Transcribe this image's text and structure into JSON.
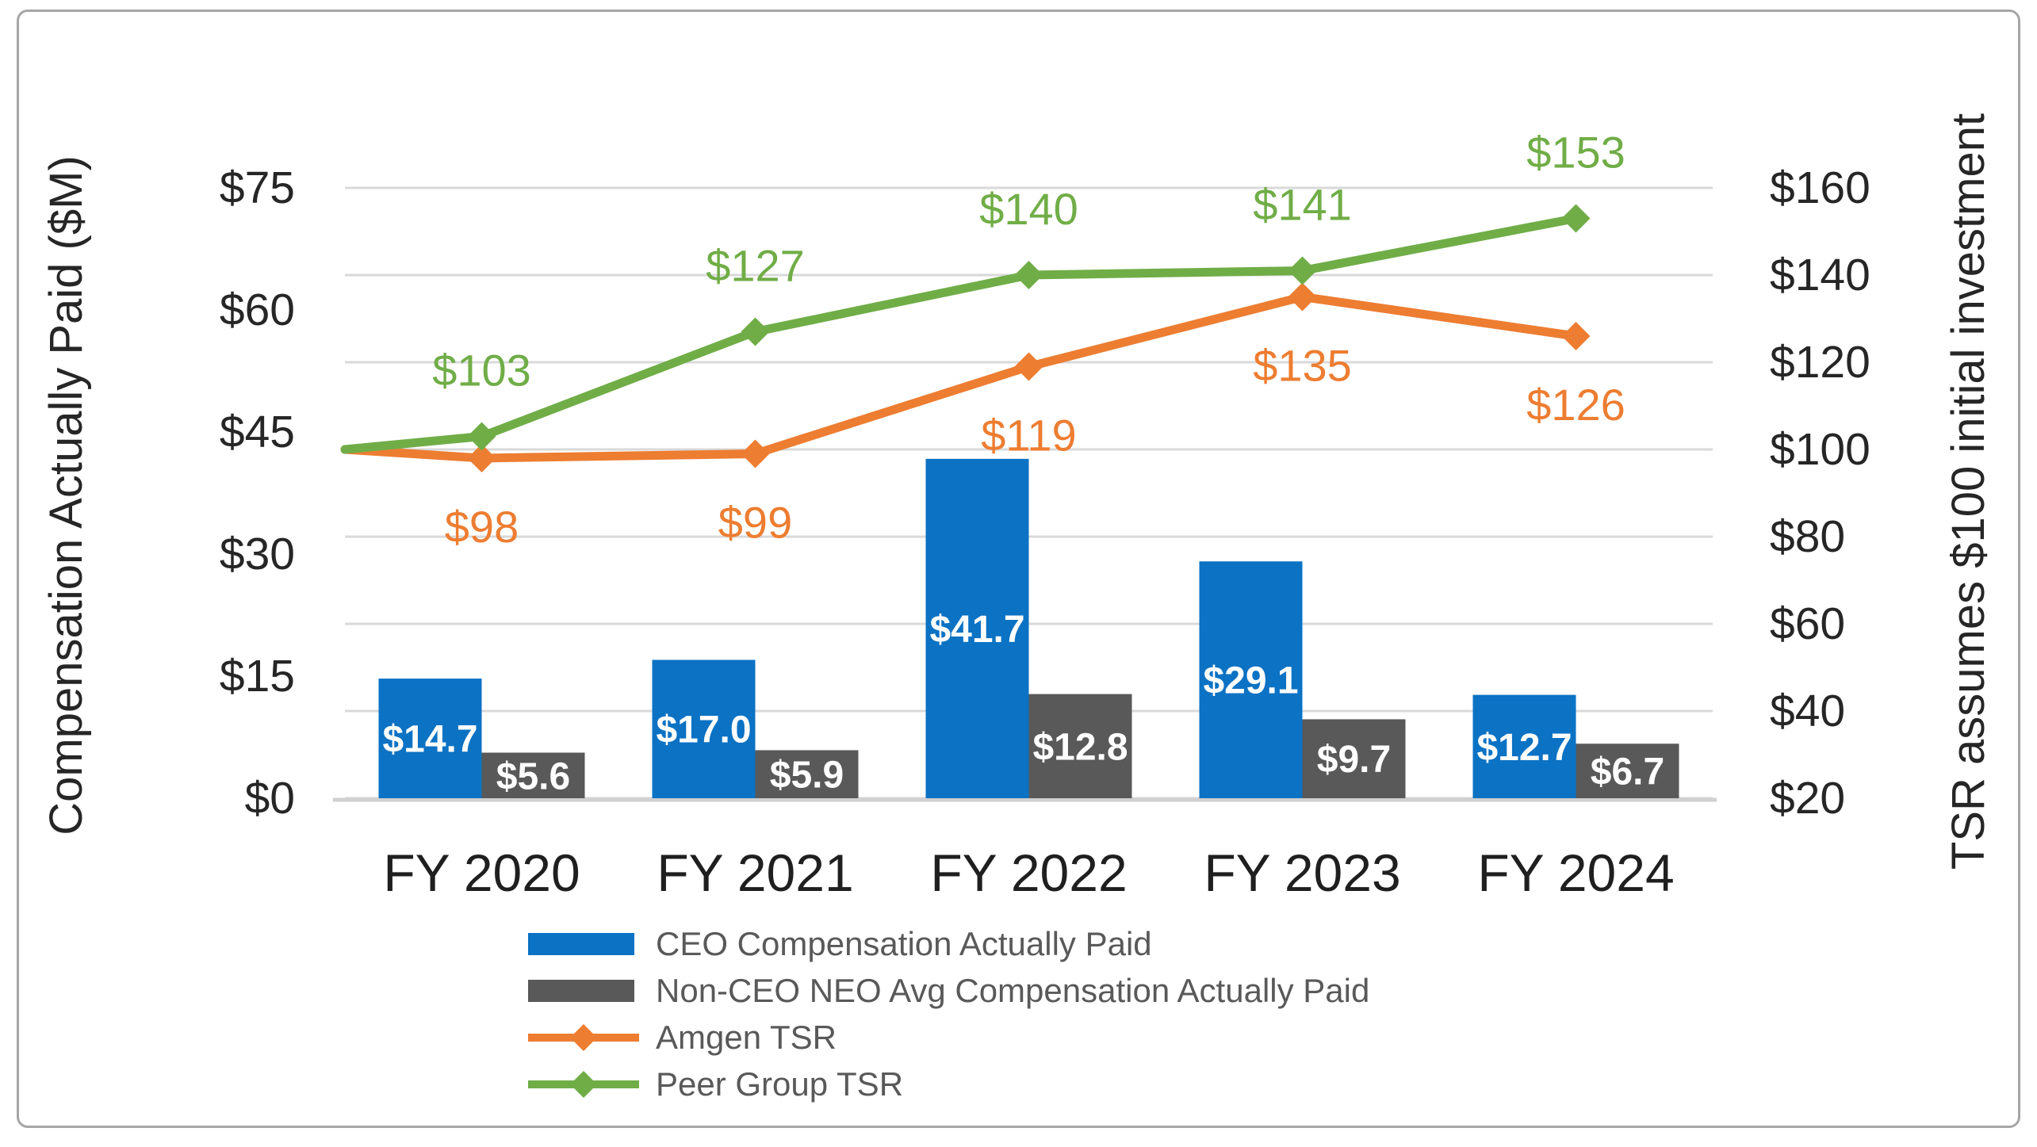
{
  "chart_data": {
    "type": "combo-bar-line",
    "categories": [
      "FY 2020",
      "FY 2021",
      "FY 2022",
      "FY 2023",
      "FY 2024"
    ],
    "bar_series": [
      {
        "name": "CEO Compensation Actually Paid",
        "color": "#0b72c4",
        "axis": "left",
        "values": [
          14.7,
          17.0,
          41.7,
          29.1,
          12.7
        ],
        "labels": [
          "$14.7",
          "$17.0",
          "$41.7",
          "$29.1",
          "$12.7"
        ],
        "label_color": "#ffffff"
      },
      {
        "name": "Non-CEO NEO Avg Compensation Actually Paid",
        "color": "#595959",
        "axis": "left",
        "values": [
          5.6,
          5.9,
          12.8,
          9.7,
          6.7
        ],
        "labels": [
          "$5.6",
          "$5.9",
          "$12.8",
          "$9.7",
          "$6.7"
        ],
        "label_color": "#ffffff"
      }
    ],
    "line_series": [
      {
        "name": "Amgen TSR",
        "color": "#ed7d31",
        "axis": "right",
        "values": [
          98,
          99,
          119,
          135,
          126
        ],
        "labels": [
          "$98",
          "$99",
          "$119",
          "$135",
          "$126"
        ],
        "label_placement": "below",
        "baseline_start": 100,
        "marker": "diamond"
      },
      {
        "name": "Peer Group TSR",
        "color": "#70ad47",
        "axis": "right",
        "values": [
          103,
          127,
          140,
          141,
          153
        ],
        "labels": [
          "$103",
          "$127",
          "$140",
          "$141",
          "$153"
        ],
        "label_placement": "above",
        "baseline_start": 100,
        "marker": "diamond"
      }
    ],
    "left_axis": {
      "title": "Compensation Actually Paid ($M)",
      "ticks": [
        "$0",
        "$15",
        "$30",
        "$45",
        "$60",
        "$75"
      ],
      "tick_values": [
        0,
        15,
        30,
        45,
        60,
        75
      ],
      "range": [
        0,
        75
      ]
    },
    "right_axis": {
      "title": "TSR assumes $100 initial investment",
      "ticks": [
        "$20",
        "$40",
        "$60",
        "$80",
        "$100",
        "$120",
        "$140",
        "$160"
      ],
      "tick_values": [
        20,
        40,
        60,
        80,
        100,
        120,
        140,
        160
      ],
      "range": [
        20,
        160
      ]
    },
    "grid": true,
    "gridline_color": "#d9d9d9",
    "legend_position": "bottom"
  }
}
